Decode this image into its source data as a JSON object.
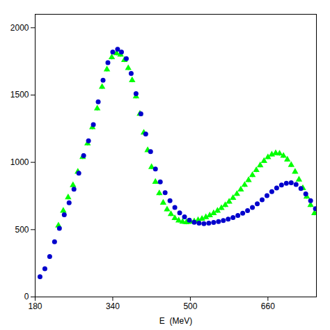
{
  "chart_data": {
    "type": "scatter",
    "xlabel": "E  (MeV)",
    "xlim": [
      180,
      760
    ],
    "ylim": [
      0,
      2100
    ],
    "xticks": [
      180,
      340,
      500,
      660
    ],
    "yticks": [
      0,
      500,
      1000,
      1500,
      2000
    ],
    "grid": false,
    "series": [
      {
        "color": "#00FF00",
        "marker": "triangle",
        "yerr": 18,
        "x": [
          228,
          238,
          248,
          258,
          268,
          278,
          288,
          298,
          308,
          318,
          328,
          338,
          348,
          356,
          364,
          372,
          380,
          388,
          396,
          404,
          412,
          420,
          428,
          436,
          444,
          452,
          460,
          468,
          476,
          484,
          492,
          500,
          508,
          516,
          524,
          532,
          540,
          548,
          556,
          564,
          572,
          580,
          588,
          596,
          604,
          612,
          620,
          628,
          636,
          644,
          652,
          660,
          668,
          676,
          684,
          692,
          700,
          708,
          716,
          724,
          732,
          740,
          748,
          756
        ],
        "values": [
          530,
          640,
          740,
          830,
          930,
          1040,
          1140,
          1260,
          1400,
          1560,
          1690,
          1780,
          1810,
          1800,
          1760,
          1700,
          1610,
          1490,
          1360,
          1220,
          1090,
          965,
          855,
          770,
          700,
          650,
          615,
          585,
          568,
          558,
          555,
          558,
          562,
          570,
          580,
          592,
          606,
          622,
          640,
          660,
          682,
          707,
          735,
          765,
          798,
          832,
          868,
          905,
          942,
          978,
          1010,
          1038,
          1058,
          1068,
          1065,
          1048,
          1020,
          980,
          930,
          872,
          808,
          745,
          682,
          622
        ]
      },
      {
        "color": "#0000CC",
        "marker": "circle",
        "x": [
          190,
          200,
          210,
          220,
          230,
          240,
          250,
          260,
          270,
          280,
          290,
          300,
          310,
          320,
          330,
          340,
          350,
          358,
          368,
          378,
          388,
          398,
          408,
          418,
          428,
          438,
          448,
          458,
          468,
          478,
          488,
          498,
          508,
          518,
          528,
          538,
          548,
          558,
          568,
          578,
          588,
          598,
          608,
          618,
          628,
          638,
          648,
          658,
          668,
          678,
          688,
          698,
          708,
          718,
          728,
          738,
          748,
          758
        ],
        "values": [
          150,
          210,
          300,
          410,
          510,
          610,
          700,
          800,
          920,
          1050,
          1160,
          1280,
          1450,
          1610,
          1740,
          1820,
          1840,
          1820,
          1770,
          1660,
          1510,
          1360,
          1210,
          1080,
          950,
          855,
          775,
          715,
          665,
          625,
          595,
          570,
          555,
          548,
          545,
          548,
          553,
          560,
          568,
          578,
          590,
          605,
          622,
          642,
          665,
          692,
          722,
          752,
          782,
          810,
          832,
          845,
          848,
          835,
          805,
          765,
          715,
          655
        ]
      }
    ]
  }
}
